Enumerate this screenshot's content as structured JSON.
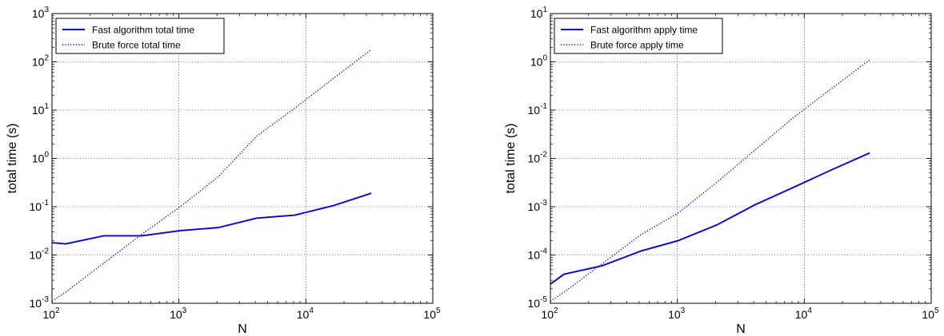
{
  "chart_data": [
    {
      "type": "line",
      "xlabel": "N",
      "ylabel": "total time (s)",
      "xscale": "log",
      "yscale": "log",
      "xlim": [
        100,
        100000
      ],
      "ylim": [
        0.001,
        1000
      ],
      "grid": true,
      "legend_position": "top-left",
      "x_ticks": [
        {
          "value": 100,
          "base": "10",
          "exp": "2"
        },
        {
          "value": 1000,
          "base": "10",
          "exp": "3"
        },
        {
          "value": 10000,
          "base": "10",
          "exp": "4"
        },
        {
          "value": 100000,
          "base": "10",
          "exp": "5"
        }
      ],
      "y_ticks": [
        {
          "value": 0.001,
          "base": "10",
          "exp": "-3"
        },
        {
          "value": 0.01,
          "base": "10",
          "exp": "-2"
        },
        {
          "value": 0.1,
          "base": "10",
          "exp": "-1"
        },
        {
          "value": 1,
          "base": "10",
          "exp": "0"
        },
        {
          "value": 10,
          "base": "10",
          "exp": "1"
        },
        {
          "value": 100,
          "base": "10",
          "exp": "2"
        },
        {
          "value": 1000,
          "base": "10",
          "exp": "3"
        }
      ],
      "series": [
        {
          "name": "Fast algorithm total time",
          "style": "solid",
          "color": "#0000ee",
          "x": [
            100,
            128,
            256,
            512,
            1024,
            2048,
            4096,
            8192,
            16384,
            32768
          ],
          "y": [
            0.018,
            0.017,
            0.025,
            0.025,
            0.032,
            0.037,
            0.058,
            0.067,
            0.105,
            0.19
          ]
        },
        {
          "name": "Brute force total time",
          "style": "dotted",
          "color": "#0000ee",
          "x": [
            100,
            128,
            256,
            512,
            1024,
            2048,
            4096,
            8192,
            16384,
            32768
          ],
          "y": [
            0.0011,
            0.0017,
            0.0068,
            0.027,
            0.1,
            0.42,
            2.9,
            11.0,
            45.0,
            180.0
          ]
        }
      ]
    },
    {
      "type": "line",
      "xlabel": "N",
      "ylabel": "total time (s)",
      "xscale": "log",
      "yscale": "log",
      "xlim": [
        100,
        100000
      ],
      "ylim": [
        1e-05,
        10
      ],
      "grid": true,
      "legend_position": "top-left",
      "x_ticks": [
        {
          "value": 100,
          "base": "10",
          "exp": "2"
        },
        {
          "value": 1000,
          "base": "10",
          "exp": "3"
        },
        {
          "value": 10000,
          "base": "10",
          "exp": "4"
        },
        {
          "value": 100000,
          "base": "10",
          "exp": "5"
        }
      ],
      "y_ticks": [
        {
          "value": 1e-05,
          "base": "10",
          "exp": "-5"
        },
        {
          "value": 0.0001,
          "base": "10",
          "exp": "-4"
        },
        {
          "value": 0.001,
          "base": "10",
          "exp": "-3"
        },
        {
          "value": 0.01,
          "base": "10",
          "exp": "-2"
        },
        {
          "value": 0.1,
          "base": "10",
          "exp": "-1"
        },
        {
          "value": 1,
          "base": "10",
          "exp": "0"
        },
        {
          "value": 10,
          "base": "10",
          "exp": "1"
        }
      ],
      "series": [
        {
          "name": "Fast algorithm apply time",
          "style": "solid",
          "color": "#0000ee",
          "x": [
            100,
            128,
            256,
            512,
            1024,
            2048,
            4096,
            8192,
            16384,
            32768
          ],
          "y": [
            2.5e-05,
            4e-05,
            6e-05,
            0.00012,
            0.0002,
            0.00042,
            0.0011,
            0.0025,
            0.0058,
            0.013
          ]
        },
        {
          "name": "Brute force apply time",
          "style": "dotted",
          "color": "#0000ee",
          "x": [
            100,
            128,
            256,
            512,
            1024,
            2048,
            4096,
            8192,
            16384,
            32768
          ],
          "y": [
            1.1e-05,
            1.7e-05,
            6.6e-05,
            0.00026,
            0.00075,
            0.0032,
            0.015,
            0.07,
            0.28,
            1.1
          ]
        }
      ]
    }
  ]
}
